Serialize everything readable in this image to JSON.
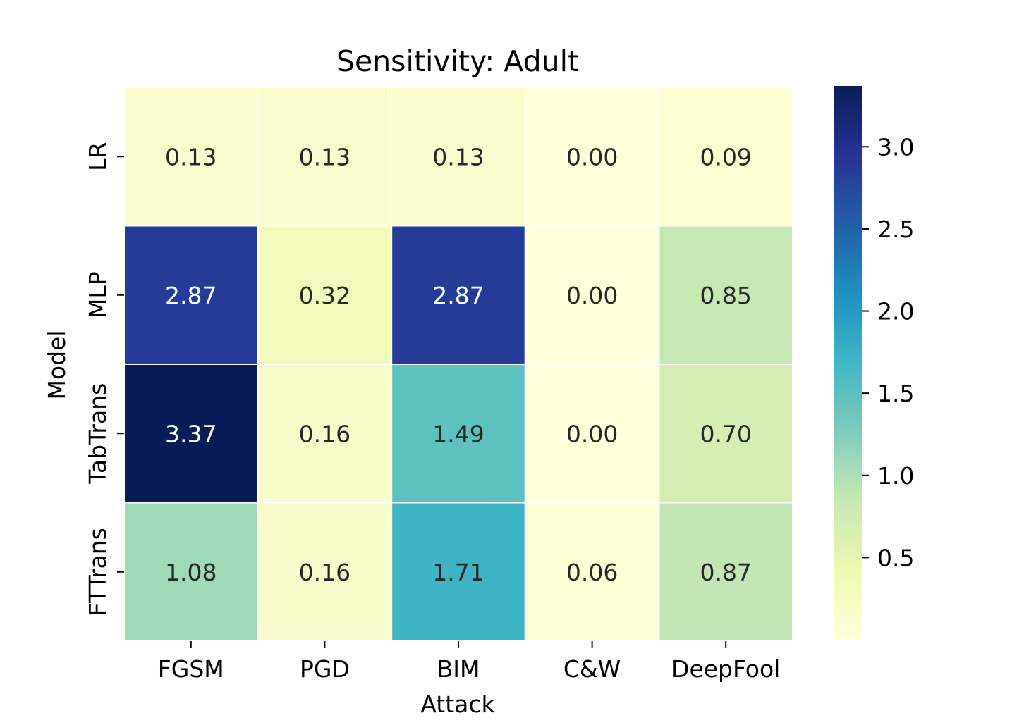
{
  "chart_data": {
    "type": "heatmap",
    "title": "Sensitivity: Adult",
    "xlabel": "Attack",
    "ylabel": "Model",
    "x_categories": [
      "FGSM",
      "PGD",
      "BIM",
      "C&W",
      "DeepFool"
    ],
    "y_categories": [
      "LR",
      "MLP",
      "TabTrans",
      "FTTrans"
    ],
    "values": [
      [
        0.13,
        0.13,
        0.13,
        0.0,
        0.09
      ],
      [
        2.87,
        0.32,
        2.87,
        0.0,
        0.85
      ],
      [
        3.37,
        0.16,
        1.49,
        0.0,
        0.7
      ],
      [
        1.08,
        0.16,
        1.71,
        0.06,
        0.87
      ]
    ],
    "value_labels": [
      [
        "0.13",
        "0.13",
        "0.13",
        "0.00",
        "0.09"
      ],
      [
        "2.87",
        "0.32",
        "2.87",
        "0.00",
        "0.85"
      ],
      [
        "3.37",
        "0.16",
        "1.49",
        "0.00",
        "0.70"
      ],
      [
        "1.08",
        "0.16",
        "1.71",
        "0.06",
        "0.87"
      ]
    ],
    "colormap": "YlGnBu",
    "colorbar": {
      "range": [
        0.0,
        3.37
      ],
      "ticks": [
        0.5,
        1.0,
        1.5,
        2.0,
        2.5,
        3.0
      ],
      "tick_labels": [
        "0.5",
        "1.0",
        "1.5",
        "2.0",
        "2.5",
        "3.0"
      ],
      "placement": "right"
    },
    "colormap_stops": [
      "#ffffd9",
      "#edf8b1",
      "#c7e9b4",
      "#7fcdbb",
      "#41b6c4",
      "#1d91c0",
      "#225ea8",
      "#253494",
      "#081d58"
    ],
    "text_colors": {
      "light_cell": "#262626",
      "dark_cell": "#ffffff"
    }
  }
}
